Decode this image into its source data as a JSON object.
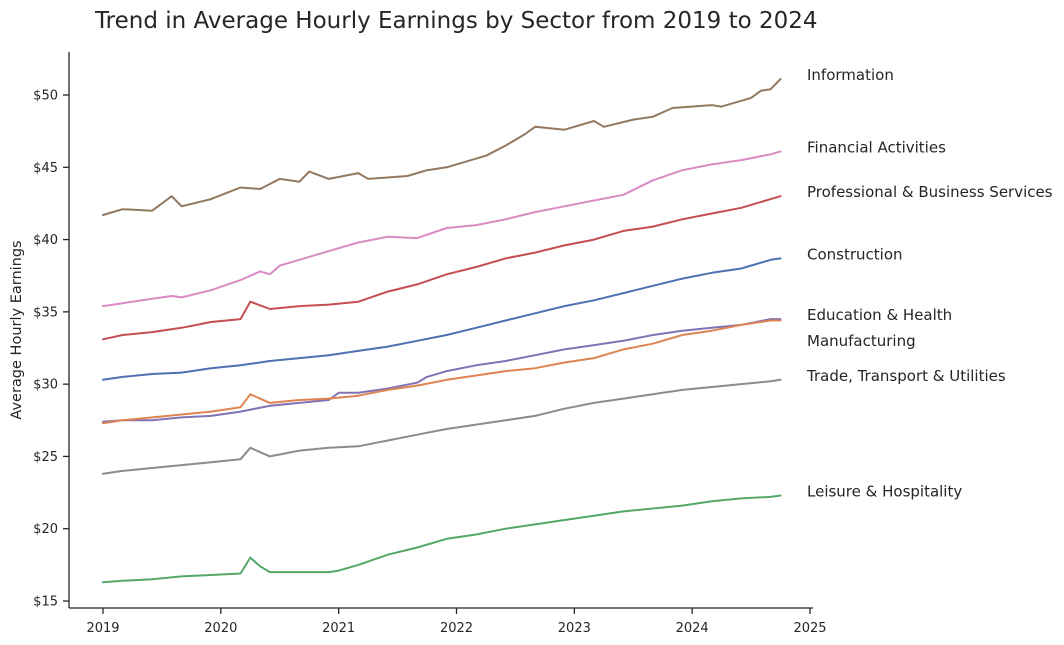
{
  "chart_data": {
    "type": "line",
    "title": "Trend in Average Hourly Earnings by Sector from 2019 to 2024",
    "xlabel": "",
    "ylabel": "Average Hourly Earnings",
    "x_ticks": [
      "2019",
      "2020",
      "2021",
      "2022",
      "2023",
      "2024",
      "2025"
    ],
    "y_ticks": [
      "$15",
      "$20",
      "$25",
      "$30",
      "$35",
      "$40",
      "$45",
      "$50"
    ],
    "xlim": [
      "2018-09-01",
      "2025-01-01"
    ],
    "ylim": [
      14.6,
      52.9
    ],
    "grid": false,
    "legend": "direct labels at right end of lines",
    "series": [
      {
        "name": "Information",
        "color": "#937860",
        "points": [
          [
            "2019-01",
            41.7
          ],
          [
            "2019-03",
            42.1
          ],
          [
            "2019-06",
            42.0
          ],
          [
            "2019-08",
            43.0
          ],
          [
            "2019-09",
            42.3
          ],
          [
            "2019-12",
            42.8
          ],
          [
            "2020-03",
            43.6
          ],
          [
            "2020-05",
            43.5
          ],
          [
            "2020-07",
            44.2
          ],
          [
            "2020-09",
            44.0
          ],
          [
            "2020-10",
            44.7
          ],
          [
            "2020-12",
            44.2
          ],
          [
            "2021-03",
            44.6
          ],
          [
            "2021-04",
            44.2
          ],
          [
            "2021-08",
            44.4
          ],
          [
            "2021-10",
            44.8
          ],
          [
            "2021-12",
            45.0
          ],
          [
            "2022-04",
            45.8
          ],
          [
            "2022-06",
            46.5
          ],
          [
            "2022-08",
            47.3
          ],
          [
            "2022-09",
            47.8
          ],
          [
            "2022-12",
            47.6
          ],
          [
            "2023-03",
            48.2
          ],
          [
            "2023-04",
            47.8
          ],
          [
            "2023-07",
            48.3
          ],
          [
            "2023-09",
            48.5
          ],
          [
            "2023-11",
            49.1
          ],
          [
            "2024-03",
            49.3
          ],
          [
            "2024-04",
            49.2
          ],
          [
            "2024-07",
            49.8
          ],
          [
            "2024-08",
            50.3
          ],
          [
            "2024-09",
            50.4
          ],
          [
            "2024-10",
            51.1
          ]
        ]
      },
      {
        "name": "Financial Activities",
        "color": "#da8bc3",
        "points": [
          [
            "2019-01",
            35.4
          ],
          [
            "2019-03",
            35.6
          ],
          [
            "2019-06",
            35.9
          ],
          [
            "2019-08",
            36.1
          ],
          [
            "2019-09",
            36.0
          ],
          [
            "2019-12",
            36.5
          ],
          [
            "2020-03",
            37.2
          ],
          [
            "2020-05",
            37.8
          ],
          [
            "2020-06",
            37.6
          ],
          [
            "2020-07",
            38.2
          ],
          [
            "2020-09",
            38.6
          ],
          [
            "2020-12",
            39.2
          ],
          [
            "2021-03",
            39.8
          ],
          [
            "2021-06",
            40.2
          ],
          [
            "2021-09",
            40.1
          ],
          [
            "2021-12",
            40.8
          ],
          [
            "2022-03",
            41.0
          ],
          [
            "2022-06",
            41.4
          ],
          [
            "2022-09",
            41.9
          ],
          [
            "2022-12",
            42.3
          ],
          [
            "2023-03",
            42.7
          ],
          [
            "2023-06",
            43.1
          ],
          [
            "2023-09",
            44.1
          ],
          [
            "2023-12",
            44.8
          ],
          [
            "2024-03",
            45.2
          ],
          [
            "2024-06",
            45.5
          ],
          [
            "2024-09",
            45.9
          ],
          [
            "2024-10",
            46.1
          ]
        ]
      },
      {
        "name": "Professional & Business Services",
        "color": "#c44e52",
        "points": [
          [
            "2019-01",
            33.1
          ],
          [
            "2019-03",
            33.4
          ],
          [
            "2019-06",
            33.6
          ],
          [
            "2019-09",
            33.9
          ],
          [
            "2019-12",
            34.3
          ],
          [
            "2020-03",
            34.5
          ],
          [
            "2020-04",
            35.7
          ],
          [
            "2020-06",
            35.2
          ],
          [
            "2020-09",
            35.4
          ],
          [
            "2020-12",
            35.5
          ],
          [
            "2021-03",
            35.7
          ],
          [
            "2021-06",
            36.4
          ],
          [
            "2021-09",
            36.9
          ],
          [
            "2021-12",
            37.6
          ],
          [
            "2022-03",
            38.1
          ],
          [
            "2022-06",
            38.7
          ],
          [
            "2022-09",
            39.1
          ],
          [
            "2022-12",
            39.6
          ],
          [
            "2023-03",
            40.0
          ],
          [
            "2023-06",
            40.6
          ],
          [
            "2023-09",
            40.9
          ],
          [
            "2023-12",
            41.4
          ],
          [
            "2024-03",
            41.8
          ],
          [
            "2024-06",
            42.2
          ],
          [
            "2024-09",
            42.8
          ],
          [
            "2024-10",
            43.0
          ]
        ]
      },
      {
        "name": "Construction",
        "color": "#4c72b0",
        "points": [
          [
            "2019-01",
            30.3
          ],
          [
            "2019-03",
            30.5
          ],
          [
            "2019-06",
            30.7
          ],
          [
            "2019-09",
            30.8
          ],
          [
            "2019-12",
            31.1
          ],
          [
            "2020-03",
            31.3
          ],
          [
            "2020-06",
            31.6
          ],
          [
            "2020-09",
            31.8
          ],
          [
            "2020-12",
            32.0
          ],
          [
            "2021-03",
            32.3
          ],
          [
            "2021-06",
            32.6
          ],
          [
            "2021-09",
            33.0
          ],
          [
            "2021-12",
            33.4
          ],
          [
            "2022-03",
            33.9
          ],
          [
            "2022-06",
            34.4
          ],
          [
            "2022-09",
            34.9
          ],
          [
            "2022-12",
            35.4
          ],
          [
            "2023-03",
            35.8
          ],
          [
            "2023-06",
            36.3
          ],
          [
            "2023-09",
            36.8
          ],
          [
            "2023-12",
            37.3
          ],
          [
            "2024-03",
            37.7
          ],
          [
            "2024-06",
            38.0
          ],
          [
            "2024-09",
            38.6
          ],
          [
            "2024-10",
            38.7
          ]
        ]
      },
      {
        "name": "Education & Health",
        "color": "#8172b3",
        "points": [
          [
            "2019-01",
            27.4
          ],
          [
            "2019-03",
            27.5
          ],
          [
            "2019-06",
            27.5
          ],
          [
            "2019-09",
            27.7
          ],
          [
            "2019-12",
            27.8
          ],
          [
            "2020-03",
            28.1
          ],
          [
            "2020-06",
            28.5
          ],
          [
            "2020-09",
            28.7
          ],
          [
            "2020-12",
            28.9
          ],
          [
            "2021-01",
            29.4
          ],
          [
            "2021-03",
            29.4
          ],
          [
            "2021-06",
            29.7
          ],
          [
            "2021-09",
            30.1
          ],
          [
            "2021-10",
            30.5
          ],
          [
            "2021-12",
            30.9
          ],
          [
            "2022-03",
            31.3
          ],
          [
            "2022-06",
            31.6
          ],
          [
            "2022-09",
            32.0
          ],
          [
            "2022-12",
            32.4
          ],
          [
            "2023-03",
            32.7
          ],
          [
            "2023-06",
            33.0
          ],
          [
            "2023-09",
            33.4
          ],
          [
            "2023-12",
            33.7
          ],
          [
            "2024-03",
            33.9
          ],
          [
            "2024-06",
            34.1
          ],
          [
            "2024-09",
            34.5
          ],
          [
            "2024-10",
            34.5
          ]
        ]
      },
      {
        "name": "Manufacturing",
        "color": "#dd8452",
        "points": [
          [
            "2019-01",
            27.3
          ],
          [
            "2019-03",
            27.5
          ],
          [
            "2019-06",
            27.7
          ],
          [
            "2019-09",
            27.9
          ],
          [
            "2019-12",
            28.1
          ],
          [
            "2020-03",
            28.4
          ],
          [
            "2020-04",
            29.3
          ],
          [
            "2020-06",
            28.7
          ],
          [
            "2020-09",
            28.9
          ],
          [
            "2020-12",
            29.0
          ],
          [
            "2021-03",
            29.2
          ],
          [
            "2021-06",
            29.6
          ],
          [
            "2021-09",
            29.9
          ],
          [
            "2021-12",
            30.3
          ],
          [
            "2022-03",
            30.6
          ],
          [
            "2022-06",
            30.9
          ],
          [
            "2022-09",
            31.1
          ],
          [
            "2022-12",
            31.5
          ],
          [
            "2023-03",
            31.8
          ],
          [
            "2023-06",
            32.4
          ],
          [
            "2023-09",
            32.8
          ],
          [
            "2023-12",
            33.4
          ],
          [
            "2024-03",
            33.7
          ],
          [
            "2024-06",
            34.1
          ],
          [
            "2024-09",
            34.4
          ],
          [
            "2024-10",
            34.4
          ]
        ]
      },
      {
        "name": "Trade, Transport & Utilities",
        "color": "#8c8c8c",
        "points": [
          [
            "2019-01",
            23.8
          ],
          [
            "2019-03",
            24.0
          ],
          [
            "2019-06",
            24.2
          ],
          [
            "2019-09",
            24.4
          ],
          [
            "2019-12",
            24.6
          ],
          [
            "2020-03",
            24.8
          ],
          [
            "2020-04",
            25.6
          ],
          [
            "2020-06",
            25.0
          ],
          [
            "2020-09",
            25.4
          ],
          [
            "2020-12",
            25.6
          ],
          [
            "2021-03",
            25.7
          ],
          [
            "2021-06",
            26.1
          ],
          [
            "2021-09",
            26.5
          ],
          [
            "2021-12",
            26.9
          ],
          [
            "2022-03",
            27.2
          ],
          [
            "2022-06",
            27.5
          ],
          [
            "2022-09",
            27.8
          ],
          [
            "2022-12",
            28.3
          ],
          [
            "2023-03",
            28.7
          ],
          [
            "2023-06",
            29.0
          ],
          [
            "2023-09",
            29.3
          ],
          [
            "2023-12",
            29.6
          ],
          [
            "2024-03",
            29.8
          ],
          [
            "2024-06",
            30.0
          ],
          [
            "2024-09",
            30.2
          ],
          [
            "2024-10",
            30.3
          ]
        ]
      },
      {
        "name": "Leisure & Hospitality",
        "color": "#55a868",
        "points": [
          [
            "2019-01",
            16.3
          ],
          [
            "2019-03",
            16.4
          ],
          [
            "2019-06",
            16.5
          ],
          [
            "2019-09",
            16.7
          ],
          [
            "2019-12",
            16.8
          ],
          [
            "2020-03",
            16.9
          ],
          [
            "2020-04",
            18.0
          ],
          [
            "2020-05",
            17.4
          ],
          [
            "2020-06",
            17.0
          ],
          [
            "2020-09",
            17.0
          ],
          [
            "2020-12",
            17.0
          ],
          [
            "2021-01",
            17.1
          ],
          [
            "2021-03",
            17.5
          ],
          [
            "2021-06",
            18.2
          ],
          [
            "2021-09",
            18.7
          ],
          [
            "2021-12",
            19.3
          ],
          [
            "2022-03",
            19.6
          ],
          [
            "2022-06",
            20.0
          ],
          [
            "2022-09",
            20.3
          ],
          [
            "2022-12",
            20.6
          ],
          [
            "2023-03",
            20.9
          ],
          [
            "2023-06",
            21.2
          ],
          [
            "2023-09",
            21.4
          ],
          [
            "2023-12",
            21.6
          ],
          [
            "2024-03",
            21.9
          ],
          [
            "2024-06",
            22.1
          ],
          [
            "2024-09",
            22.2
          ],
          [
            "2024-10",
            22.3
          ]
        ]
      }
    ]
  }
}
